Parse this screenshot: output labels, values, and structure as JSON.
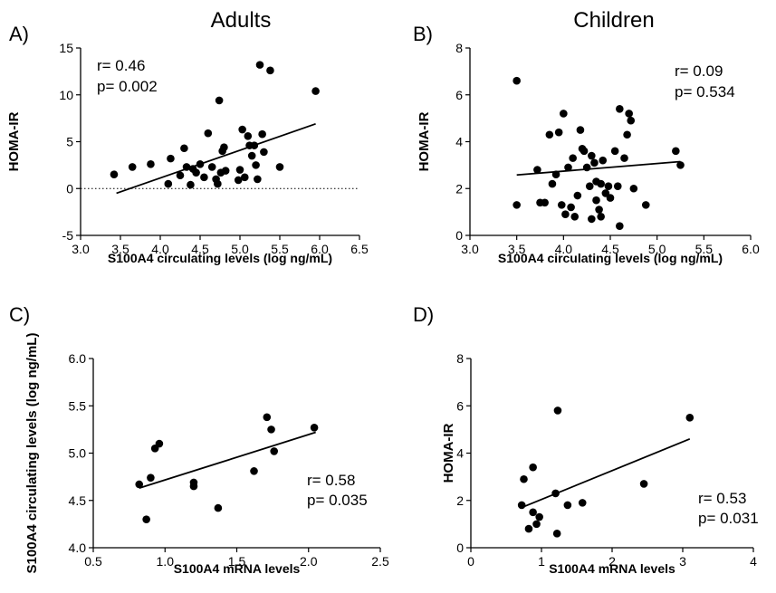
{
  "figure": {
    "column_titles": [
      "Adults",
      "Children"
    ]
  },
  "chart_data": [
    {
      "panel": "A)",
      "type": "scatter",
      "xlabel": "S100A4 circulating levels (log ng/mL)",
      "ylabel": "HOMA-IR",
      "xlim": [
        3.0,
        6.5
      ],
      "ylim": [
        -5,
        15
      ],
      "xticks": [
        "3.0",
        "3.5",
        "4.0",
        "4.5",
        "5.0",
        "5.5",
        "6.0",
        "6.5"
      ],
      "yticks": [
        "-5",
        "0",
        "5",
        "10",
        "15"
      ],
      "zero_line": true,
      "stats": [
        "r= 0.46",
        "p= 0.002"
      ],
      "fit_line": {
        "x": [
          3.45,
          5.95
        ],
        "y": [
          -0.5,
          6.9
        ]
      },
      "points": [
        {
          "x": 3.42,
          "y": 1.5
        },
        {
          "x": 3.65,
          "y": 2.3
        },
        {
          "x": 3.88,
          "y": 2.6
        },
        {
          "x": 4.1,
          "y": 0.5
        },
        {
          "x": 4.13,
          "y": 3.2
        },
        {
          "x": 4.25,
          "y": 1.4
        },
        {
          "x": 4.3,
          "y": 4.3
        },
        {
          "x": 4.33,
          "y": 2.3
        },
        {
          "x": 4.38,
          "y": 0.4
        },
        {
          "x": 4.41,
          "y": 2.1
        },
        {
          "x": 4.45,
          "y": 1.7
        },
        {
          "x": 4.5,
          "y": 2.6
        },
        {
          "x": 4.55,
          "y": 1.2
        },
        {
          "x": 4.6,
          "y": 5.9
        },
        {
          "x": 4.65,
          "y": 2.3
        },
        {
          "x": 4.7,
          "y": 1.0
        },
        {
          "x": 4.72,
          "y": 0.5
        },
        {
          "x": 4.74,
          "y": 9.4
        },
        {
          "x": 4.76,
          "y": 1.7
        },
        {
          "x": 4.78,
          "y": 4.0
        },
        {
          "x": 4.8,
          "y": 4.4
        },
        {
          "x": 4.82,
          "y": 1.9
        },
        {
          "x": 4.98,
          "y": 0.9
        },
        {
          "x": 5.0,
          "y": 2.0
        },
        {
          "x": 5.03,
          "y": 6.3
        },
        {
          "x": 5.06,
          "y": 1.2
        },
        {
          "x": 5.1,
          "y": 5.6
        },
        {
          "x": 5.12,
          "y": 4.6
        },
        {
          "x": 5.15,
          "y": 3.5
        },
        {
          "x": 5.18,
          "y": 4.6
        },
        {
          "x": 5.2,
          "y": 2.5
        },
        {
          "x": 5.22,
          "y": 1.0
        },
        {
          "x": 5.25,
          "y": 13.2
        },
        {
          "x": 5.28,
          "y": 5.8
        },
        {
          "x": 5.3,
          "y": 3.9
        },
        {
          "x": 5.38,
          "y": 12.6
        },
        {
          "x": 5.5,
          "y": 2.3
        },
        {
          "x": 5.95,
          "y": 10.4
        }
      ]
    },
    {
      "panel": "B)",
      "type": "scatter",
      "xlabel": "S100A4 circulating levels (log ng/mL)",
      "ylabel": "HOMA-IR",
      "xlim": [
        3.0,
        6.0
      ],
      "ylim": [
        0,
        8
      ],
      "xticks": [
        "3.0",
        "3.5",
        "4.0",
        "4.5",
        "5.0",
        "5.5",
        "6.0"
      ],
      "yticks": [
        "0",
        "2",
        "4",
        "6",
        "8"
      ],
      "zero_line": false,
      "stats": [
        "r= 0.09",
        "p= 0.534"
      ],
      "fit_line": {
        "x": [
          3.5,
          5.25
        ],
        "y": [
          2.58,
          3.15
        ]
      },
      "points": [
        {
          "x": 3.5,
          "y": 6.6
        },
        {
          "x": 3.5,
          "y": 1.3
        },
        {
          "x": 3.72,
          "y": 2.8
        },
        {
          "x": 3.75,
          "y": 1.4
        },
        {
          "x": 3.8,
          "y": 1.4
        },
        {
          "x": 3.85,
          "y": 4.3
        },
        {
          "x": 3.88,
          "y": 2.2
        },
        {
          "x": 3.92,
          "y": 2.6
        },
        {
          "x": 3.95,
          "y": 4.4
        },
        {
          "x": 3.98,
          "y": 1.3
        },
        {
          "x": 4.0,
          "y": 5.2
        },
        {
          "x": 4.02,
          "y": 0.9
        },
        {
          "x": 4.05,
          "y": 2.9
        },
        {
          "x": 4.08,
          "y": 1.2
        },
        {
          "x": 4.1,
          "y": 3.3
        },
        {
          "x": 4.12,
          "y": 0.8
        },
        {
          "x": 4.15,
          "y": 1.7
        },
        {
          "x": 4.18,
          "y": 4.5
        },
        {
          "x": 4.2,
          "y": 3.7
        },
        {
          "x": 4.22,
          "y": 3.6
        },
        {
          "x": 4.25,
          "y": 2.9
        },
        {
          "x": 4.28,
          "y": 2.1
        },
        {
          "x": 4.3,
          "y": 3.4
        },
        {
          "x": 4.3,
          "y": 0.7
        },
        {
          "x": 4.33,
          "y": 3.1
        },
        {
          "x": 4.35,
          "y": 2.3
        },
        {
          "x": 4.35,
          "y": 1.5
        },
        {
          "x": 4.38,
          "y": 1.1
        },
        {
          "x": 4.4,
          "y": 2.2
        },
        {
          "x": 4.4,
          "y": 0.8
        },
        {
          "x": 4.42,
          "y": 3.2
        },
        {
          "x": 4.45,
          "y": 1.8
        },
        {
          "x": 4.48,
          "y": 2.1
        },
        {
          "x": 4.5,
          "y": 1.6
        },
        {
          "x": 4.55,
          "y": 3.6
        },
        {
          "x": 4.58,
          "y": 2.1
        },
        {
          "x": 4.6,
          "y": 0.4
        },
        {
          "x": 4.6,
          "y": 5.4
        },
        {
          "x": 4.65,
          "y": 3.3
        },
        {
          "x": 4.68,
          "y": 4.3
        },
        {
          "x": 4.7,
          "y": 5.2
        },
        {
          "x": 4.72,
          "y": 4.9
        },
        {
          "x": 4.75,
          "y": 2.0
        },
        {
          "x": 4.88,
          "y": 1.3
        },
        {
          "x": 5.2,
          "y": 3.6
        },
        {
          "x": 5.25,
          "y": 3.0
        }
      ]
    },
    {
      "panel": "C)",
      "type": "scatter",
      "xlabel": "S100A4 mRNA levels",
      "ylabel": "S100A4 circulating levels (log ng/mL)",
      "xlim": [
        0.5,
        2.5
      ],
      "ylim": [
        4.0,
        6.0
      ],
      "xticks": [
        "0.5",
        "1.0",
        "1.5",
        "2.0",
        "2.5"
      ],
      "yticks": [
        "4.0",
        "4.5",
        "5.0",
        "5.5",
        "6.0"
      ],
      "zero_line": false,
      "stats": [
        "r= 0.58",
        "p= 0.035"
      ],
      "fit_line": {
        "x": [
          0.82,
          2.05
        ],
        "y": [
          4.63,
          5.22
        ]
      },
      "points": [
        {
          "x": 0.82,
          "y": 4.67
        },
        {
          "x": 0.87,
          "y": 4.3
        },
        {
          "x": 0.9,
          "y": 4.74
        },
        {
          "x": 0.93,
          "y": 5.05
        },
        {
          "x": 0.96,
          "y": 5.1
        },
        {
          "x": 1.2,
          "y": 4.65
        },
        {
          "x": 1.2,
          "y": 4.69
        },
        {
          "x": 1.37,
          "y": 4.42
        },
        {
          "x": 1.62,
          "y": 4.81
        },
        {
          "x": 1.71,
          "y": 5.38
        },
        {
          "x": 1.74,
          "y": 5.25
        },
        {
          "x": 1.76,
          "y": 5.02
        },
        {
          "x": 2.04,
          "y": 5.27
        }
      ]
    },
    {
      "panel": "D)",
      "type": "scatter",
      "xlabel": "S100A4 mRNA levels",
      "ylabel": "HOMA-IR",
      "xlim": [
        0,
        4
      ],
      "ylim": [
        0,
        8
      ],
      "xticks": [
        "0",
        "1",
        "2",
        "3",
        "4"
      ],
      "yticks": [
        "0",
        "2",
        "4",
        "6",
        "8"
      ],
      "zero_line": false,
      "stats": [
        "r= 0.53",
        "p= 0.031"
      ],
      "fit_line": {
        "x": [
          0.72,
          3.1
        ],
        "y": [
          1.7,
          4.6
        ]
      },
      "points": [
        {
          "x": 0.72,
          "y": 1.8
        },
        {
          "x": 0.75,
          "y": 2.9
        },
        {
          "x": 0.82,
          "y": 0.8
        },
        {
          "x": 0.88,
          "y": 3.4
        },
        {
          "x": 0.88,
          "y": 1.5
        },
        {
          "x": 0.93,
          "y": 1.0
        },
        {
          "x": 0.97,
          "y": 1.3
        },
        {
          "x": 1.2,
          "y": 2.3
        },
        {
          "x": 1.22,
          "y": 0.6
        },
        {
          "x": 1.23,
          "y": 5.8
        },
        {
          "x": 1.37,
          "y": 1.8
        },
        {
          "x": 1.58,
          "y": 1.9
        },
        {
          "x": 2.45,
          "y": 2.7
        },
        {
          "x": 3.1,
          "y": 5.5
        }
      ]
    }
  ]
}
